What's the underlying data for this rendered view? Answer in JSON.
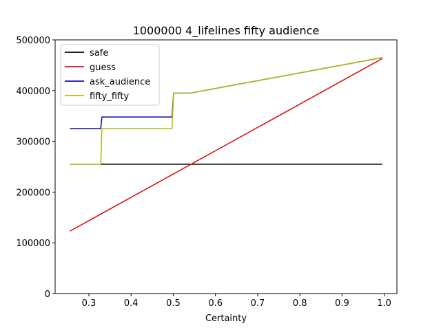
{
  "chart_data": {
    "type": "line",
    "title": "1000000 4_lifelines fifty audience",
    "xlabel": "Certainty",
    "ylabel": "",
    "xlim": [
      0.22,
      1.03
    ],
    "ylim": [
      0,
      500000
    ],
    "xticks": [
      0.3,
      0.4,
      0.5,
      0.6,
      0.7,
      0.8,
      0.9,
      1.0
    ],
    "xtick_labels": [
      "0.3",
      "0.4",
      "0.5",
      "0.6",
      "0.7",
      "0.8",
      "0.9",
      "1.0"
    ],
    "yticks": [
      0,
      100000,
      200000,
      300000,
      400000,
      500000
    ],
    "ytick_labels": [
      "0",
      "100000",
      "200000",
      "300000",
      "400000",
      "500000"
    ],
    "grid": false,
    "legend_position": "top-left",
    "series": [
      {
        "name": "safe",
        "color": "#000000",
        "x": [
          0.255,
          0.995
        ],
        "y": [
          255000,
          255000
        ]
      },
      {
        "name": "guess",
        "color": "#dd1111",
        "x": [
          0.255,
          0.995
        ],
        "y": [
          123000,
          463000
        ]
      },
      {
        "name": "ask_audience",
        "color": "#1111bb",
        "x": [
          0.255,
          0.328,
          0.331,
          0.497,
          0.501,
          0.54,
          0.995
        ],
        "y": [
          325000,
          325000,
          348000,
          348000,
          395000,
          395000,
          465000
        ]
      },
      {
        "name": "fifty_fifty",
        "color": "#bbbb11",
        "x": [
          0.255,
          0.328,
          0.331,
          0.497,
          0.501,
          0.54,
          0.995
        ],
        "y": [
          255000,
          255000,
          325000,
          325000,
          395000,
          395000,
          465000
        ]
      }
    ]
  }
}
